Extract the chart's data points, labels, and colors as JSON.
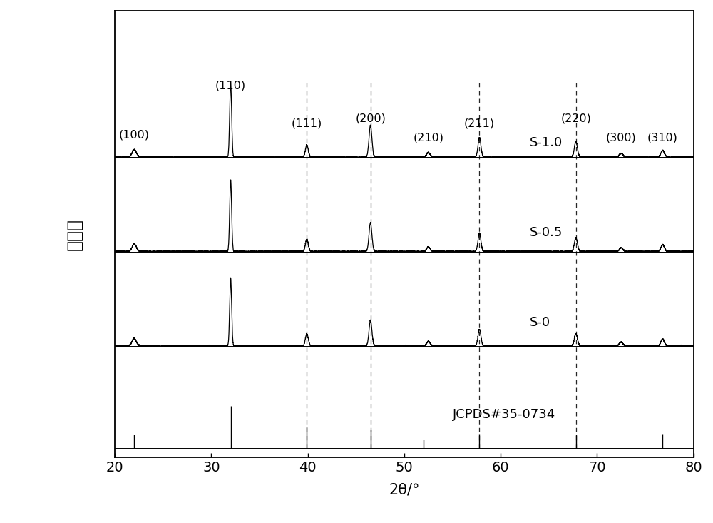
{
  "xlabel": "2θ/°",
  "ylabel": "峰强度",
  "xlim": [
    20,
    80
  ],
  "xticks": [
    20,
    30,
    40,
    50,
    60,
    70,
    80
  ],
  "background_color": "#ffffff",
  "series_labels": [
    "S-1.0",
    "S-0.5",
    "S-0",
    "JCPDS#35-0734"
  ],
  "peak_positions": [
    22.0,
    32.0,
    39.9,
    46.5,
    52.5,
    57.8,
    67.8,
    72.5,
    76.8
  ],
  "peak_widths": [
    0.22,
    0.1,
    0.15,
    0.15,
    0.18,
    0.15,
    0.16,
    0.18,
    0.18
  ],
  "heights_s10": [
    0.1,
    1.0,
    0.16,
    0.42,
    0.06,
    0.26,
    0.2,
    0.05,
    0.09
  ],
  "heights_s05": [
    0.1,
    0.95,
    0.16,
    0.38,
    0.06,
    0.24,
    0.18,
    0.05,
    0.09
  ],
  "heights_s0": [
    0.1,
    0.9,
    0.16,
    0.34,
    0.06,
    0.22,
    0.16,
    0.05,
    0.09
  ],
  "jcpds_positions": [
    22.0,
    32.0,
    39.9,
    46.5,
    52.0,
    57.8,
    67.8,
    76.8
  ],
  "jcpds_heights": [
    0.28,
    0.9,
    0.45,
    0.4,
    0.18,
    0.3,
    0.28,
    0.3
  ],
  "dashed_lines": [
    39.9,
    46.5,
    57.8,
    67.8
  ],
  "miller_labels": [
    "(100)",
    "(110)",
    "(111)",
    "(200)",
    "(210)",
    "(211)",
    "(220)",
    "(300)",
    "(310)"
  ],
  "miller_x": [
    22.0,
    32.0,
    39.9,
    46.5,
    52.5,
    57.8,
    67.8,
    72.5,
    76.8
  ],
  "offsets": [
    3.0,
    2.0,
    1.0,
    0.0
  ],
  "scale": 0.8
}
